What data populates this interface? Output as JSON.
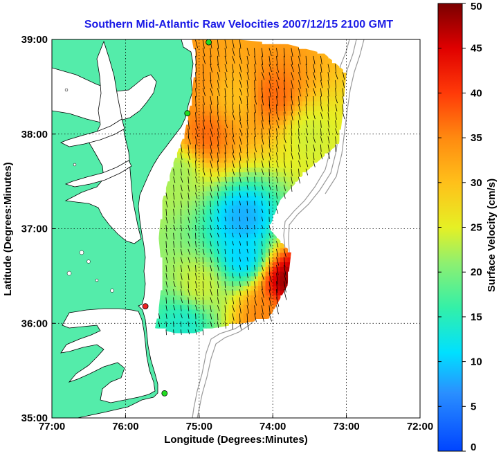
{
  "title": "Southern Mid-Atlantic Raw Velocities 2007/12/15 2100 GMT",
  "x_axis": {
    "label": "Longitude (Degrees:Minutes)",
    "ticks": [
      "77:00",
      "76:00",
      "75:00",
      "74:00",
      "73:00",
      "72:00"
    ]
  },
  "y_axis": {
    "label": "Latitude (Degrees:Minutes)",
    "ticks": [
      "39:00",
      "38:00",
      "37:00",
      "36:00",
      "35:00"
    ]
  },
  "colorbar": {
    "label": "Surface Velocity (cm/s)",
    "min": 0,
    "max": 50,
    "ticks": [
      "50",
      "45",
      "40",
      "35",
      "30",
      "25",
      "20",
      "15",
      "10",
      "5",
      "0"
    ],
    "colormap": "jet"
  },
  "colors": {
    "land": "#54ecaa",
    "water": "#ffffff",
    "title": "#1a1ae6",
    "coastline": "#000000",
    "bathymetry": "#999999",
    "station_active": "#22dd22",
    "station_alert": "#ee2222"
  },
  "map_extent": {
    "lon": [
      -77,
      -72
    ],
    "lat": [
      35,
      39
    ]
  },
  "stations": [
    {
      "lon": -74.87,
      "lat": 38.97,
      "status": "active"
    },
    {
      "lon": -75.16,
      "lat": 38.22,
      "status": "active"
    },
    {
      "lon": -75.73,
      "lat": 36.18,
      "status": "alert"
    },
    {
      "lon": -75.47,
      "lat": 35.26,
      "status": "active"
    }
  ],
  "grid": "dotted",
  "chart_data": {
    "type": "heatmap",
    "title": "Southern Mid-Atlantic Raw Velocities 2007/12/15 2100 GMT",
    "xlabel": "Longitude (Degrees:Minutes)",
    "ylabel": "Latitude (Degrees:Minutes)",
    "xlim": [
      -77,
      -72
    ],
    "ylim": [
      35,
      39
    ],
    "value_range": [
      0,
      50
    ],
    "units": "cm/s",
    "hotspots": [
      {
        "lon": -74.9,
        "lat": 38.0,
        "speed": 37
      },
      {
        "lon": -74.0,
        "lat": 38.4,
        "speed": 37
      },
      {
        "lon": -75.1,
        "lat": 38.6,
        "speed": 34
      },
      {
        "lon": -74.5,
        "lat": 38.4,
        "speed": 30
      },
      {
        "lon": -73.8,
        "lat": 36.45,
        "speed": 49
      },
      {
        "lon": -74.1,
        "lat": 36.1,
        "speed": 35
      },
      {
        "lon": -74.4,
        "lat": 37.1,
        "speed": 8
      },
      {
        "lon": -74.4,
        "lat": 36.7,
        "speed": 10
      },
      {
        "lon": -75.0,
        "lat": 36.4,
        "speed": 24
      },
      {
        "lon": -75.3,
        "lat": 37.6,
        "speed": 22
      },
      {
        "lon": -73.5,
        "lat": 38.0,
        "speed": 24
      },
      {
        "lon": -75.2,
        "lat": 36.0,
        "speed": 14
      }
    ]
  }
}
